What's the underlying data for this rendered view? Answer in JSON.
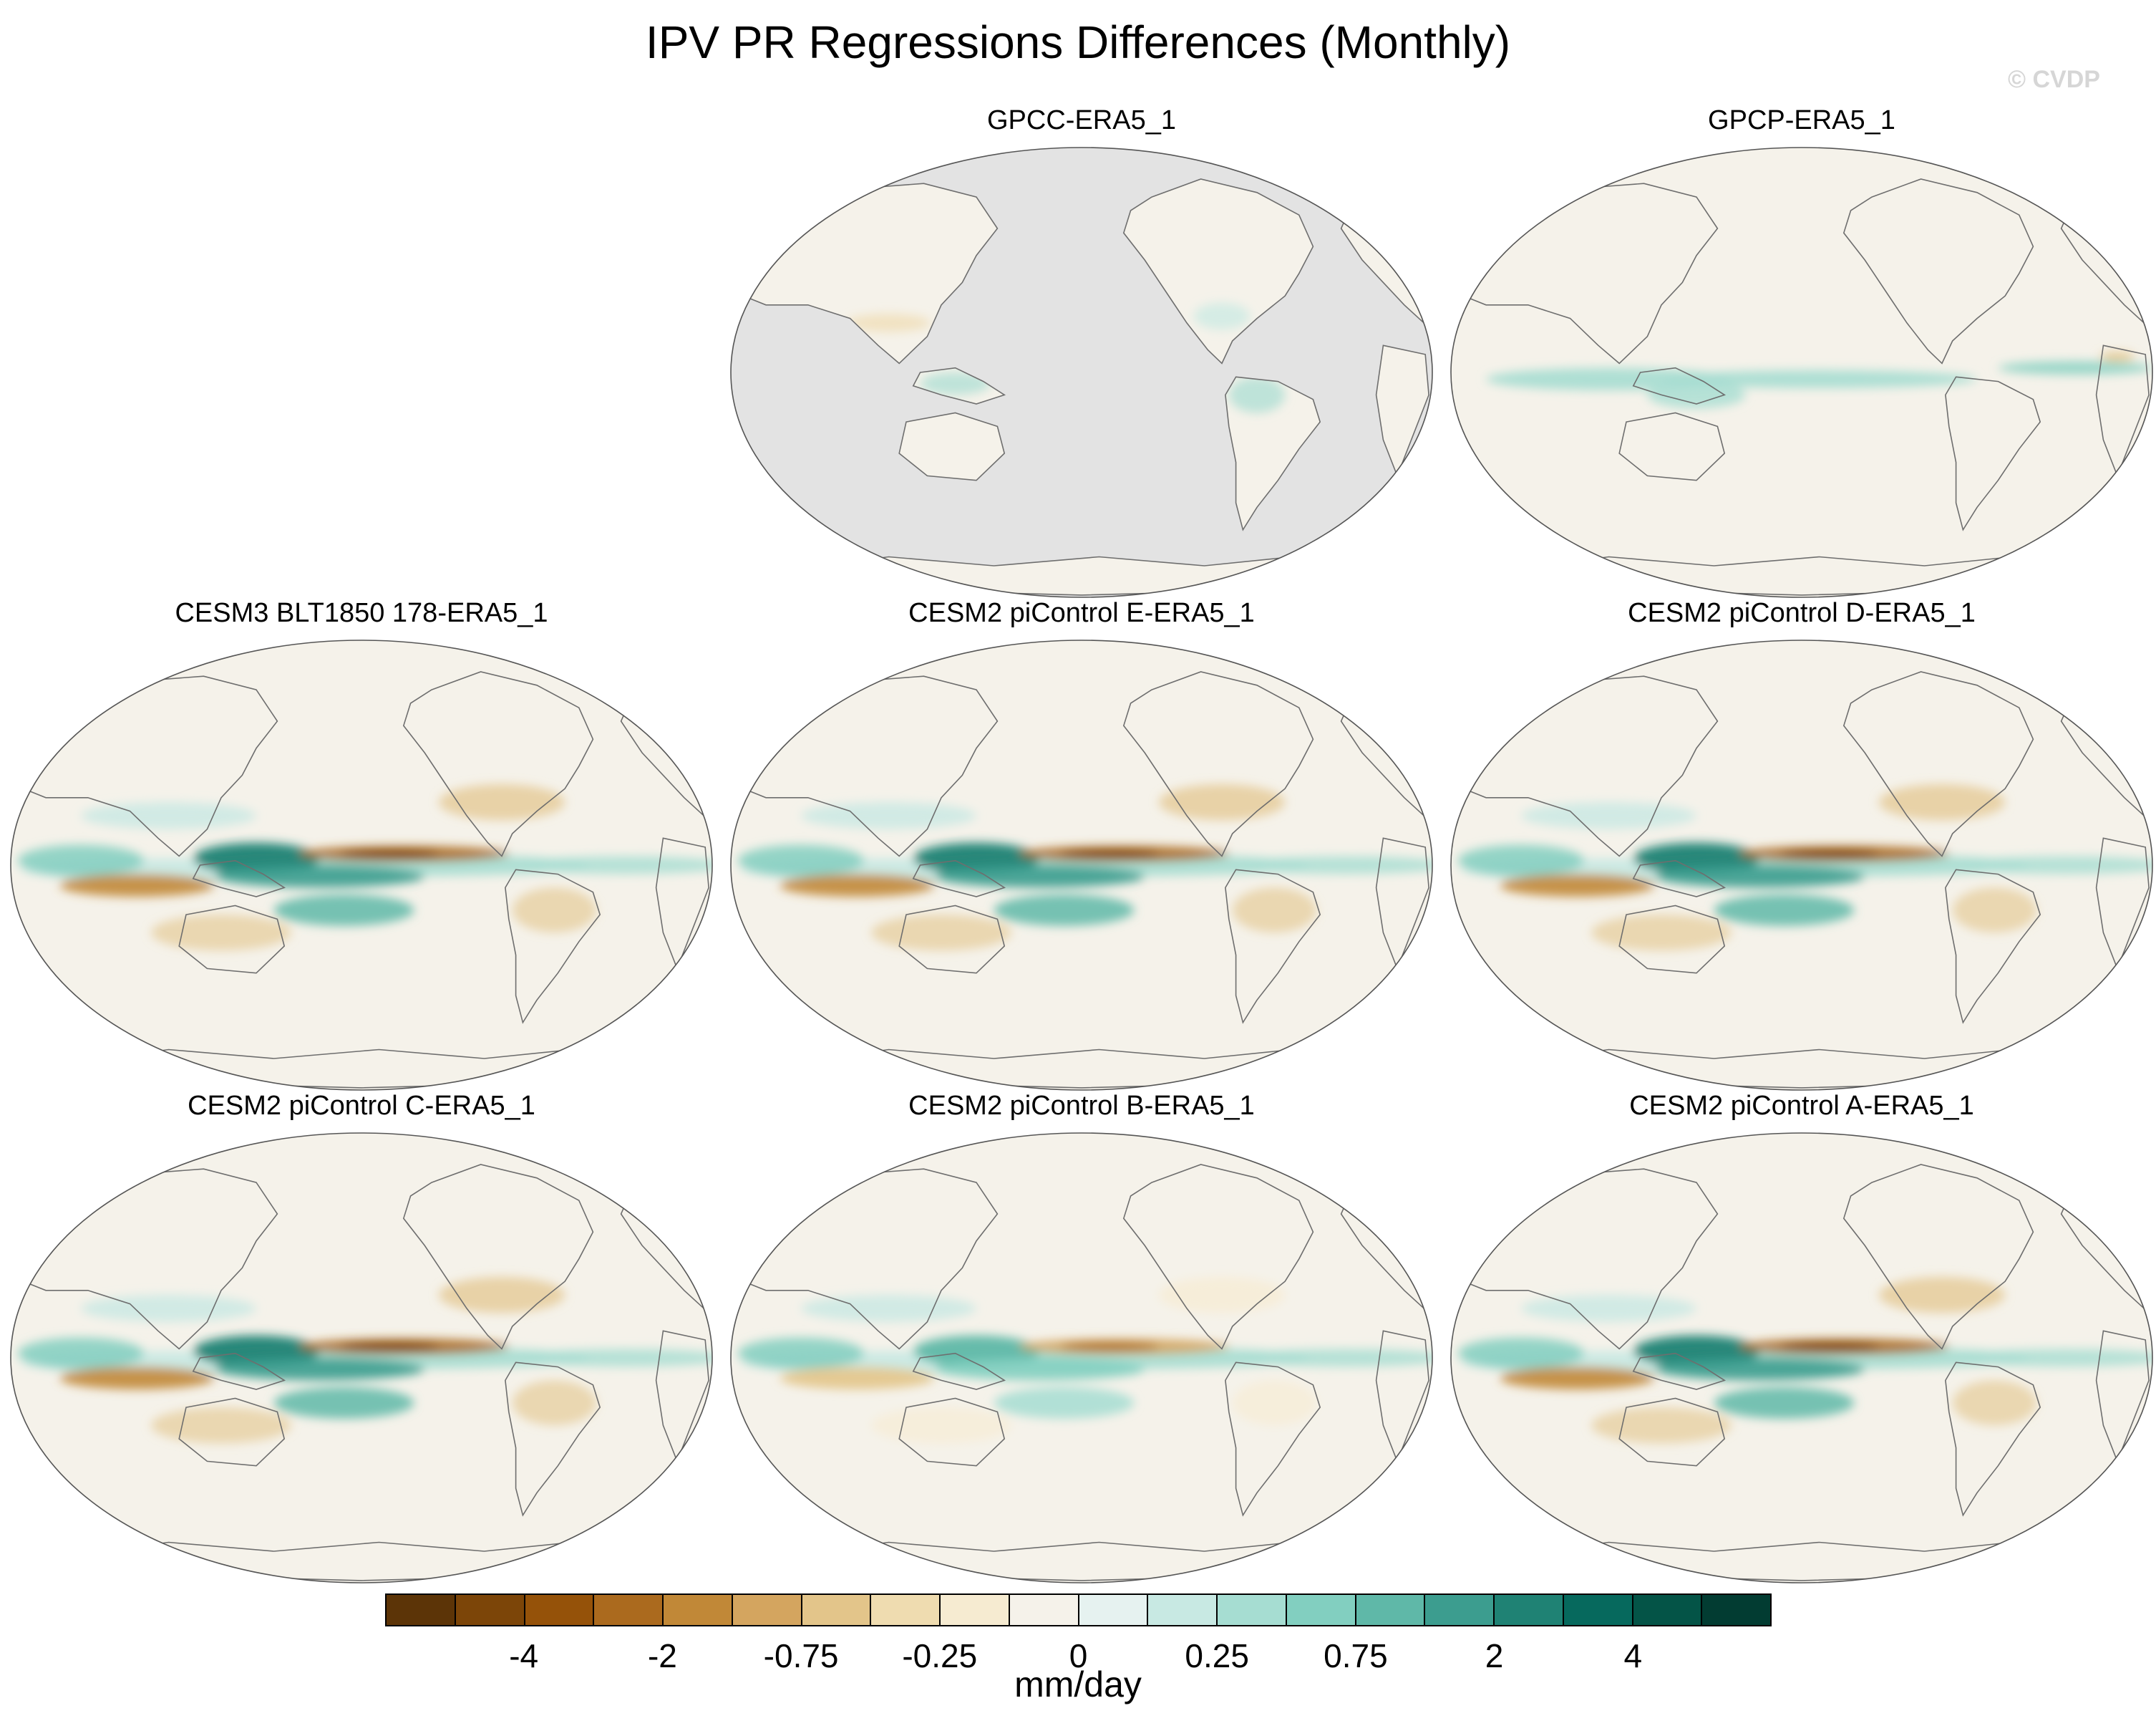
{
  "figure": {
    "title": "IPV PR Regressions Differences (Monthly)",
    "watermark": "© CVDP"
  },
  "panels": [
    {
      "id": "gpcc",
      "title": "GPCC-ERA5_1",
      "land_only": true,
      "strength": 0.45
    },
    {
      "id": "gpcp",
      "title": "GPCP-ERA5_1",
      "land_only": false,
      "strength": 0.55
    },
    {
      "id": "cesm3",
      "title": "CESM3 BLT1850 178-ERA5_1",
      "land_only": false,
      "strength": 1.0
    },
    {
      "id": "e",
      "title": "CESM2 piControl E-ERA5_1",
      "land_only": false,
      "strength": 1.0
    },
    {
      "id": "d",
      "title": "CESM2 piControl D-ERA5_1",
      "land_only": false,
      "strength": 1.0
    },
    {
      "id": "c",
      "title": "CESM2 piControl C-ERA5_1",
      "land_only": false,
      "strength": 1.0
    },
    {
      "id": "b",
      "title": "CESM2 piControl B-ERA5_1",
      "land_only": false,
      "strength": 0.85
    },
    {
      "id": "a",
      "title": "CESM2 piControl A-ERA5_1",
      "land_only": false,
      "strength": 1.0
    }
  ],
  "colorbar": {
    "units": "mm/day",
    "colors": [
      "#5c3407",
      "#7c4508",
      "#955209",
      "#ab6a1e",
      "#c18837",
      "#d4a55f",
      "#e3c58a",
      "#efdcb0",
      "#f6ebd1",
      "#f5f2ea",
      "#e6f2f0",
      "#c8e9e3",
      "#a6ddd2",
      "#82cfc0",
      "#5fb8a8",
      "#3c9d8f",
      "#1f8274",
      "#06695d",
      "#045447",
      "#023c32"
    ],
    "tick_labels": [
      "-4",
      "-2",
      "-0.75",
      "-0.25",
      "0",
      "0.25",
      "0.75",
      "2",
      "4"
    ],
    "tick_boundaries": [
      2,
      4,
      6,
      8,
      10,
      12,
      14,
      16,
      18
    ]
  }
}
